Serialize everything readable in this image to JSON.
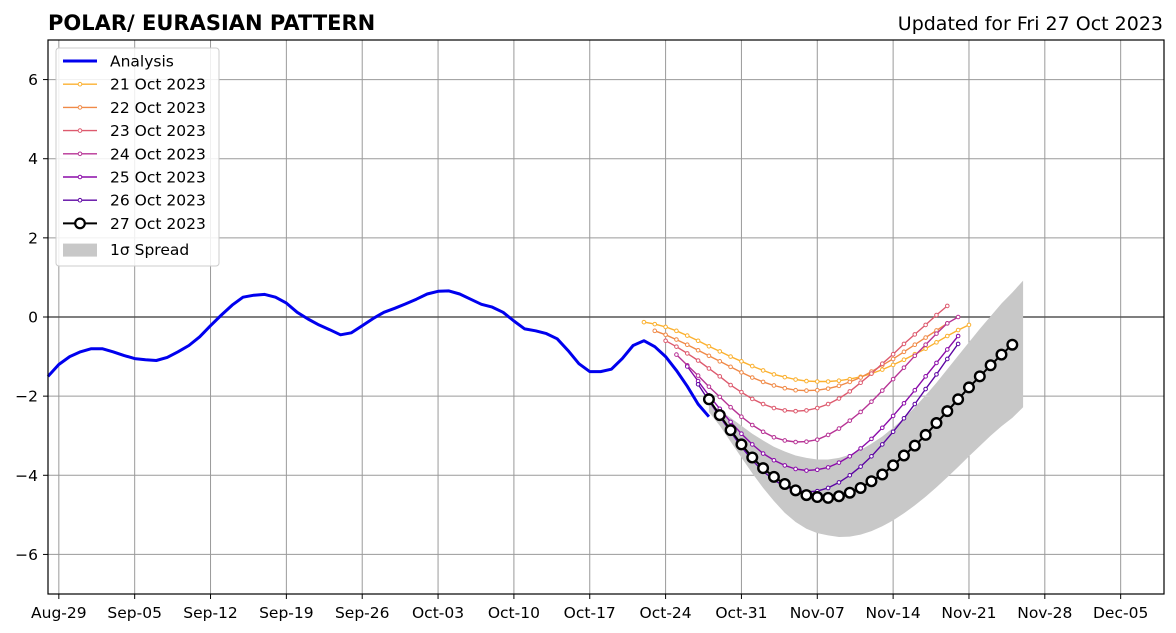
{
  "chart_data": {
    "type": "line",
    "title": "POLAR/ EURASIAN  PATTERN",
    "subtitle": "Updated for Fri 27 Oct 2023",
    "xlabel": "",
    "ylabel": "",
    "x_range": [
      "2023-08-28",
      "2023-12-09"
    ],
    "ylim": [
      -7,
      7
    ],
    "x_ticks": [
      {
        "date": "2023-08-29",
        "label": "Aug-29"
      },
      {
        "date": "2023-09-05",
        "label": "Sep-05"
      },
      {
        "date": "2023-09-12",
        "label": "Sep-12"
      },
      {
        "date": "2023-09-19",
        "label": "Sep-19"
      },
      {
        "date": "2023-09-26",
        "label": "Sep-26"
      },
      {
        "date": "2023-10-03",
        "label": "Oct-03"
      },
      {
        "date": "2023-10-10",
        "label": "Oct-10"
      },
      {
        "date": "2023-10-17",
        "label": "Oct-17"
      },
      {
        "date": "2023-10-24",
        "label": "Oct-24"
      },
      {
        "date": "2023-10-31",
        "label": "Oct-31"
      },
      {
        "date": "2023-11-07",
        "label": "Nov-07"
      },
      {
        "date": "2023-11-14",
        "label": "Nov-14"
      },
      {
        "date": "2023-11-21",
        "label": "Nov-21"
      },
      {
        "date": "2023-11-28",
        "label": "Nov-28"
      },
      {
        "date": "2023-12-05",
        "label": "Dec-05"
      }
    ],
    "y_ticks": [
      -6,
      -4,
      -2,
      0,
      2,
      4,
      6
    ],
    "y_tick_labels": [
      "−6",
      "−4",
      "−2",
      "0",
      "2",
      "4",
      "6"
    ],
    "grid": true,
    "zero_line": true,
    "legend_position": "top-left",
    "analysis": {
      "name": "Analysis",
      "color": "#0000ee",
      "start_date": "2023-08-28",
      "values": [
        -1.5,
        -1.2,
        -1.0,
        -0.88,
        -0.8,
        -0.8,
        -0.88,
        -0.97,
        -1.05,
        -1.08,
        -1.1,
        -1.02,
        -0.88,
        -0.72,
        -0.5,
        -0.22,
        0.05,
        0.3,
        0.5,
        0.55,
        0.57,
        0.5,
        0.35,
        0.12,
        -0.05,
        -0.2,
        -0.32,
        -0.45,
        -0.4,
        -0.22,
        -0.04,
        0.12,
        0.22,
        0.33,
        0.45,
        0.58,
        0.65,
        0.66,
        0.58,
        0.45,
        0.32,
        0.25,
        0.12,
        -0.1,
        -0.3,
        -0.35,
        -0.42,
        -0.55,
        -0.85,
        -1.18,
        -1.38,
        -1.38,
        -1.32,
        -1.05,
        -0.72,
        -0.6,
        -0.75,
        -1.0,
        -1.35,
        -1.75,
        -2.2,
        -2.52
      ]
    },
    "series": [
      {
        "name": "21 Oct 2023",
        "color": "#fbb130",
        "start_date": "2023-10-22",
        "values": [
          -0.13,
          -0.18,
          -0.25,
          -0.35,
          -0.47,
          -0.6,
          -0.74,
          -0.87,
          -1.0,
          -1.12,
          -1.24,
          -1.35,
          -1.45,
          -1.52,
          -1.58,
          -1.62,
          -1.63,
          -1.63,
          -1.61,
          -1.57,
          -1.51,
          -1.43,
          -1.33,
          -1.21,
          -1.08,
          -0.94,
          -0.8,
          -0.64,
          -0.48,
          -0.33,
          -0.2
        ]
      },
      {
        "name": "22 Oct 2023",
        "color": "#f08a48",
        "start_date": "2023-10-23",
        "values": [
          -0.35,
          -0.45,
          -0.57,
          -0.7,
          -0.84,
          -0.98,
          -1.12,
          -1.26,
          -1.4,
          -1.53,
          -1.64,
          -1.73,
          -1.8,
          -1.85,
          -1.86,
          -1.85,
          -1.81,
          -1.74,
          -1.64,
          -1.53,
          -1.38,
          -1.22,
          -1.06,
          -0.88,
          -0.7,
          -0.52,
          -0.34,
          -0.16
        ]
      },
      {
        "name": "23 Oct 2023",
        "color": "#dd5a6e",
        "start_date": "2023-10-24",
        "values": [
          -0.6,
          -0.75,
          -0.92,
          -1.1,
          -1.3,
          -1.5,
          -1.72,
          -1.9,
          -2.07,
          -2.2,
          -2.3,
          -2.36,
          -2.38,
          -2.36,
          -2.3,
          -2.2,
          -2.06,
          -1.88,
          -1.66,
          -1.43,
          -1.18,
          -0.94,
          -0.68,
          -0.44,
          -0.2,
          0.05,
          0.28
        ]
      },
      {
        "name": "24 Oct 2023",
        "color": "#b73395",
        "start_date": "2023-10-25",
        "values": [
          -0.95,
          -1.22,
          -1.48,
          -1.76,
          -2.02,
          -2.28,
          -2.52,
          -2.73,
          -2.9,
          -3.04,
          -3.12,
          -3.16,
          -3.15,
          -3.1,
          -2.98,
          -2.82,
          -2.62,
          -2.4,
          -2.14,
          -1.86,
          -1.57,
          -1.28,
          -0.98,
          -0.7,
          -0.42,
          -0.16,
          0.0
        ]
      },
      {
        "name": "25 Oct 2023",
        "color": "#8b0ca9",
        "start_date": "2023-10-26",
        "values": [
          -1.25,
          -1.62,
          -1.98,
          -2.32,
          -2.65,
          -2.95,
          -3.22,
          -3.45,
          -3.62,
          -3.75,
          -3.84,
          -3.88,
          -3.86,
          -3.8,
          -3.68,
          -3.52,
          -3.32,
          -3.08,
          -2.8,
          -2.5,
          -2.18,
          -1.85,
          -1.5,
          -1.16,
          -0.82,
          -0.48
        ]
      },
      {
        "name": "26 Oct 2023",
        "color": "#5c04a3",
        "start_date": "2023-10-27",
        "values": [
          -1.7,
          -2.12,
          -2.52,
          -2.9,
          -3.28,
          -3.62,
          -3.9,
          -4.12,
          -4.28,
          -4.38,
          -4.42,
          -4.4,
          -4.32,
          -4.18,
          -4.0,
          -3.78,
          -3.52,
          -3.22,
          -2.9,
          -2.56,
          -2.2,
          -1.82,
          -1.45,
          -1.06,
          -0.68
        ]
      },
      {
        "name": "27 Oct 2023",
        "color": "#000000",
        "start_date": "2023-10-28",
        "values": [
          -2.08,
          -2.48,
          -2.86,
          -3.22,
          -3.55,
          -3.82,
          -4.04,
          -4.22,
          -4.38,
          -4.5,
          -4.55,
          -4.57,
          -4.53,
          -4.44,
          -4.32,
          -4.15,
          -3.98,
          -3.75,
          -3.5,
          -3.25,
          -2.98,
          -2.68,
          -2.38,
          -2.08,
          -1.78,
          -1.5,
          -1.22,
          -0.95,
          -0.7
        ]
      }
    ],
    "spread": {
      "name": "1σ Spread",
      "color": "#c8c8c8",
      "start_date": "2023-10-28",
      "upper": [
        -2.2,
        -2.35,
        -2.55,
        -2.75,
        -2.95,
        -3.12,
        -3.28,
        -3.4,
        -3.5,
        -3.56,
        -3.6,
        -3.6,
        -3.56,
        -3.48,
        -3.36,
        -3.2,
        -3.02,
        -2.8,
        -2.56,
        -2.28,
        -1.98,
        -1.66,
        -1.32,
        -0.98,
        -0.64,
        -0.3,
        0.02,
        0.34,
        0.62,
        0.92
      ],
      "lower": [
        -2.4,
        -2.75,
        -3.15,
        -3.55,
        -3.95,
        -4.32,
        -4.65,
        -4.95,
        -5.18,
        -5.35,
        -5.46,
        -5.52,
        -5.56,
        -5.55,
        -5.5,
        -5.41,
        -5.29,
        -5.14,
        -4.96,
        -4.76,
        -4.54,
        -4.3,
        -4.05,
        -3.79,
        -3.52,
        -3.26,
        -3.0,
        -2.76,
        -2.55,
        -2.28
      ]
    }
  }
}
